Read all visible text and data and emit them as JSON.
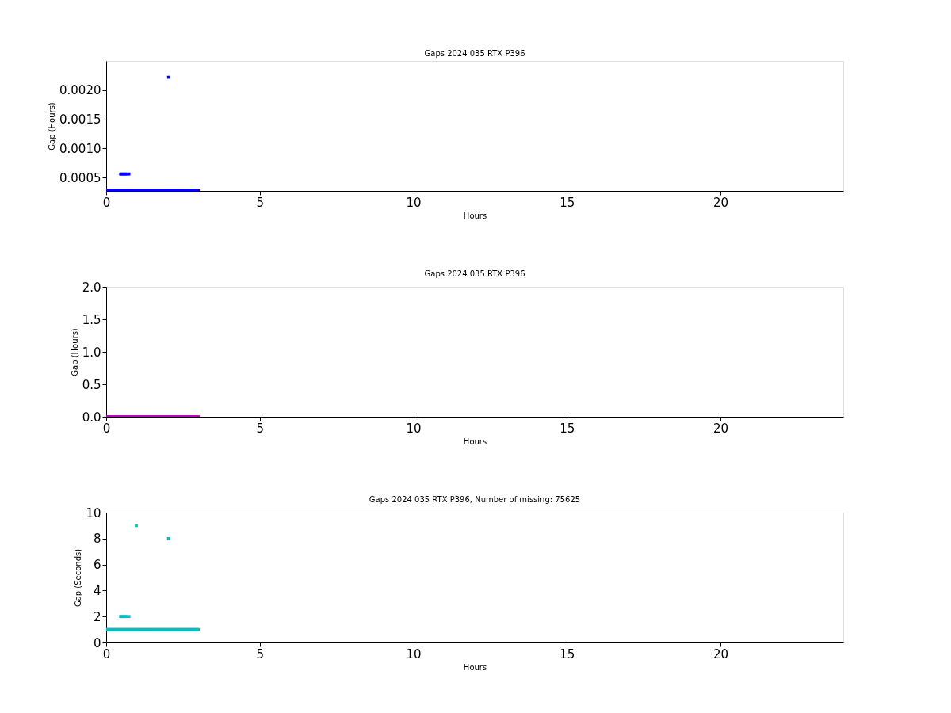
{
  "chart_data": [
    {
      "type": "scatter",
      "title": "Gaps 2024 035 RTX  P396",
      "xlabel": "Hours",
      "ylabel": "Gap (Hours)",
      "xlim": [
        0,
        24
      ],
      "xticks": [
        0,
        5,
        10,
        15,
        20
      ],
      "ylim": [
        0.00027,
        0.0025
      ],
      "yticks": [
        0.0005,
        {
          "value": 0.001,
          "label": "0.0010"
        },
        0.0015,
        {
          "value": 0.002,
          "label": "0.0020"
        }
      ],
      "marker": "square",
      "grid": false,
      "series": [
        {
          "color": "#0000ff",
          "x": [
            0,
            0.05,
            0.1,
            0.15,
            0.2,
            0.25,
            0.3,
            0.35,
            0.4,
            0.45,
            0.5,
            0.55,
            0.6,
            0.65,
            0.7,
            0.75,
            0.8,
            0.85,
            0.9,
            0.95,
            1,
            1.05,
            1.1,
            1.15,
            1.2,
            1.25,
            1.3,
            1.35,
            1.4,
            1.45,
            1.5,
            1.55,
            1.6,
            1.65,
            1.7,
            1.75,
            1.8,
            1.85,
            1.9,
            1.95,
            2,
            2.05,
            2.1,
            2.15,
            2.2,
            2.25,
            2.3,
            2.35,
            2.4,
            2.45,
            2.5,
            2.55,
            2.6,
            2.65,
            2.7,
            2.75,
            2.8,
            2.85,
            2.9,
            2.95,
            3,
            0.47,
            0.52,
            0.57,
            0.62,
            0.67,
            0.74,
            2.03
          ],
          "values": [
            0.00028,
            0.00028,
            0.00028,
            0.00028,
            0.00028,
            0.00028,
            0.00028,
            0.00028,
            0.00028,
            0.00028,
            0.00028,
            0.00028,
            0.00028,
            0.00028,
            0.00028,
            0.00028,
            0.00028,
            0.00028,
            0.00028,
            0.00028,
            0.00028,
            0.00028,
            0.00028,
            0.00028,
            0.00028,
            0.00028,
            0.00028,
            0.00028,
            0.00028,
            0.00028,
            0.00028,
            0.00028,
            0.00028,
            0.00028,
            0.00028,
            0.00028,
            0.00028,
            0.00028,
            0.00028,
            0.00028,
            0.00028,
            0.00028,
            0.00028,
            0.00028,
            0.00028,
            0.00028,
            0.00028,
            0.00028,
            0.00028,
            0.00028,
            0.00028,
            0.00028,
            0.00028,
            0.00028,
            0.00028,
            0.00028,
            0.00028,
            0.00028,
            0.00028,
            0.00028,
            0.00028,
            0.00056,
            0.00056,
            0.00056,
            0.00056,
            0.00056,
            0.00056,
            0.00222
          ]
        }
      ]
    },
    {
      "type": "scatter",
      "title": "Gaps 2024 035 RTX  P396",
      "xlabel": "Hours",
      "ylabel": "Gap (Hours)",
      "xlim": [
        0,
        24
      ],
      "xticks": [
        0,
        5,
        10,
        15,
        20
      ],
      "ylim": [
        0,
        2
      ],
      "yticks": [
        {
          "value": 0,
          "label": "0.0"
        },
        0.5,
        {
          "value": 1,
          "label": "1.0"
        },
        1.5,
        {
          "value": 2,
          "label": "2.0"
        }
      ],
      "marker": "square",
      "grid": false,
      "series": [
        {
          "color": "#bf00bf",
          "x": [
            0,
            0.05,
            0.1,
            0.15,
            0.2,
            0.25,
            0.3,
            0.35,
            0.4,
            0.45,
            0.5,
            0.55,
            0.6,
            0.65,
            0.7,
            0.75,
            0.8,
            0.85,
            0.9,
            0.95,
            1,
            1.05,
            1.1,
            1.15,
            1.2,
            1.25,
            1.3,
            1.35,
            1.4,
            1.45,
            1.5,
            1.55,
            1.6,
            1.65,
            1.7,
            1.75,
            1.8,
            1.85,
            1.9,
            1.95,
            2,
            2.05,
            2.1,
            2.15,
            2.2,
            2.25,
            2.3,
            2.35,
            2.4,
            2.45,
            2.5,
            2.55,
            2.6,
            2.65,
            2.7,
            2.75,
            2.8,
            2.85,
            2.9,
            2.95,
            3
          ],
          "values": [
            0,
            0,
            0,
            0,
            0,
            0,
            0,
            0,
            0,
            0,
            0,
            0,
            0,
            0,
            0,
            0,
            0,
            0,
            0,
            0,
            0,
            0,
            0,
            0,
            0,
            0,
            0,
            0,
            0,
            0,
            0,
            0,
            0,
            0,
            0,
            0,
            0,
            0,
            0,
            0,
            0,
            0,
            0,
            0,
            0,
            0,
            0,
            0,
            0,
            0,
            0,
            0,
            0,
            0,
            0,
            0,
            0,
            0,
            0,
            0,
            0
          ]
        }
      ]
    },
    {
      "type": "scatter",
      "title": "Gaps 2024 035 RTX  P396, Number of missing: 75625",
      "xlabel": "Hours",
      "ylabel": "Gap (Seconds)",
      "xlim": [
        0,
        24
      ],
      "xticks": [
        0,
        5,
        10,
        15,
        20
      ],
      "ylim": [
        0,
        10
      ],
      "yticks": [
        0,
        2,
        4,
        6,
        8,
        10
      ],
      "marker": "square",
      "grid": false,
      "series": [
        {
          "color": "#00bfbf",
          "x": [
            0,
            0.05,
            0.1,
            0.15,
            0.2,
            0.25,
            0.3,
            0.35,
            0.4,
            0.45,
            0.5,
            0.55,
            0.6,
            0.65,
            0.7,
            0.75,
            0.8,
            0.85,
            0.9,
            0.95,
            1,
            1.05,
            1.1,
            1.15,
            1.2,
            1.25,
            1.3,
            1.35,
            1.4,
            1.45,
            1.5,
            1.55,
            1.6,
            1.65,
            1.7,
            1.75,
            1.8,
            1.85,
            1.9,
            1.95,
            2,
            2.05,
            2.1,
            2.15,
            2.2,
            2.25,
            2.3,
            2.35,
            2.4,
            2.45,
            2.5,
            2.55,
            2.6,
            2.65,
            2.7,
            2.75,
            2.8,
            2.85,
            2.9,
            2.95,
            3,
            0.47,
            0.52,
            0.57,
            0.62,
            0.67,
            0.74,
            0.98,
            2.03
          ],
          "values": [
            1,
            1,
            1,
            1,
            1,
            1,
            1,
            1,
            1,
            1,
            1,
            1,
            1,
            1,
            1,
            1,
            1,
            1,
            1,
            1,
            1,
            1,
            1,
            1,
            1,
            1,
            1,
            1,
            1,
            1,
            1,
            1,
            1,
            1,
            1,
            1,
            1,
            1,
            1,
            1,
            1,
            1,
            1,
            1,
            1,
            1,
            1,
            1,
            1,
            1,
            1,
            1,
            1,
            1,
            1,
            1,
            1,
            1,
            1,
            1,
            1,
            2,
            2,
            2,
            2,
            2,
            2,
            9,
            8
          ]
        }
      ]
    }
  ]
}
